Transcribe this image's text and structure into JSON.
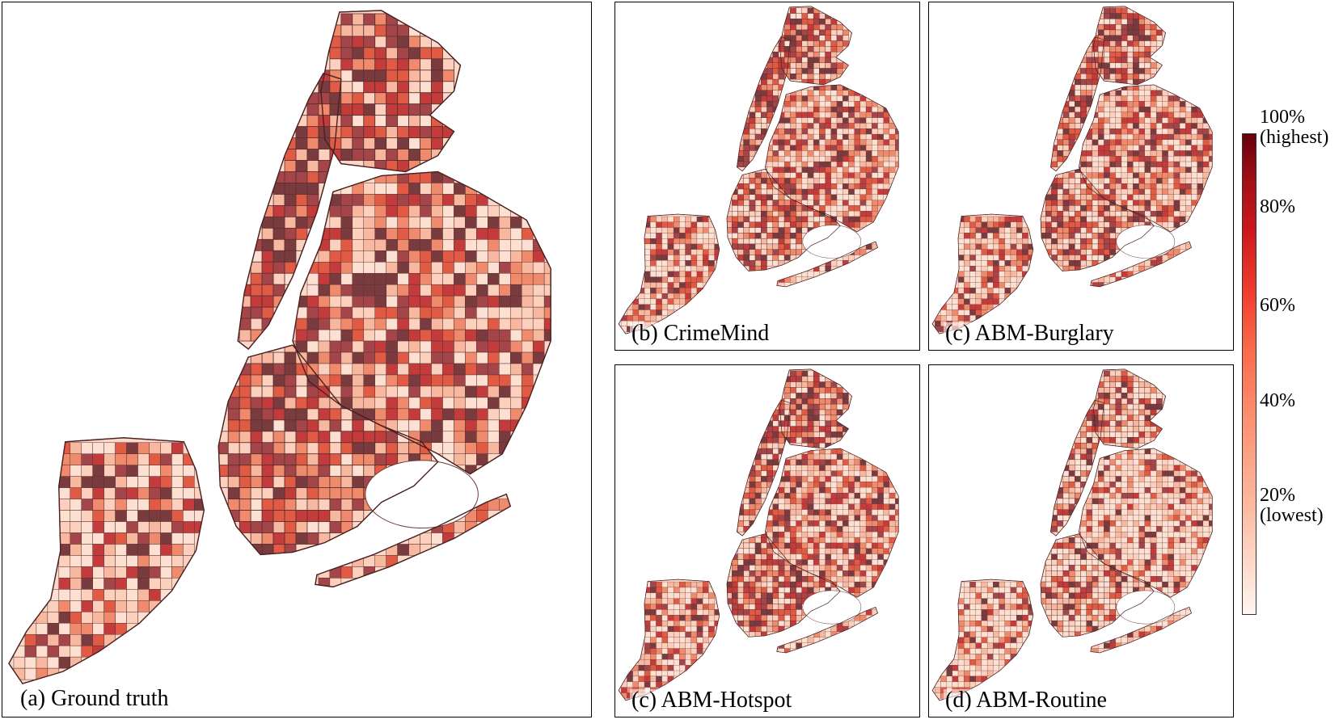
{
  "panels": [
    {
      "id": "a",
      "caption": "(a) Ground truth",
      "scheme": "dense"
    },
    {
      "id": "b",
      "caption": "(b) CrimeMind",
      "scheme": "medium"
    },
    {
      "id": "c",
      "caption": "(c) ABM-Burglary",
      "scheme": "medium"
    },
    {
      "id": "d",
      "caption": "(c) ABM-Hotspot",
      "scheme": "medium"
    },
    {
      "id": "e",
      "caption": "(d) ABM-Routine",
      "scheme": "light"
    }
  ],
  "colorbar": {
    "ticks": [
      {
        "value": 100,
        "label": "100%",
        "sub": "(highest)"
      },
      {
        "value": 80,
        "label": "80%",
        "sub": ""
      },
      {
        "value": 60,
        "label": "60%",
        "sub": ""
      },
      {
        "value": 40,
        "label": "40%",
        "sub": ""
      },
      {
        "value": 20,
        "label": "20%",
        "sub": "(lowest)"
      }
    ],
    "colors": [
      "#fff5f0",
      "#fcbba1",
      "#fc9272",
      "#fb6a4a",
      "#ef3b2c",
      "#cb181d",
      "#a50f15",
      "#67000d"
    ]
  },
  "colors": {
    "land_light": "#fdd5c5",
    "land_mid": "#f4a582",
    "land_dark": "#8b3a3a",
    "grid": "#5a3030",
    "border": "#000000"
  }
}
